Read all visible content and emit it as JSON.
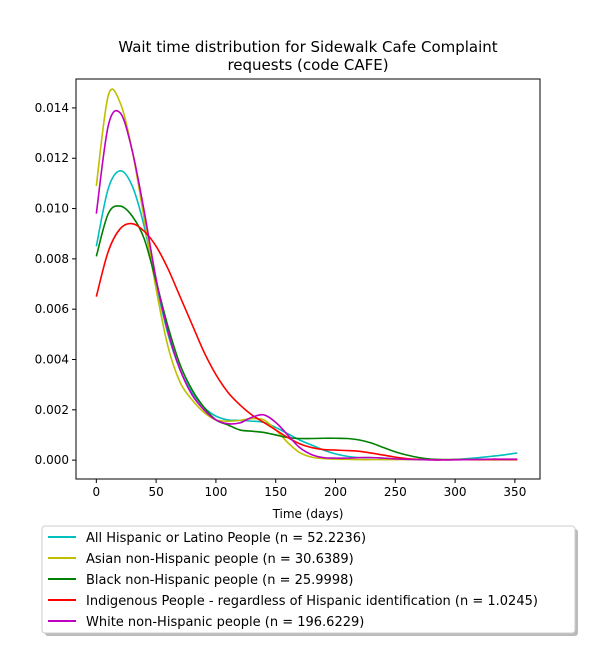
{
  "chart_data": {
    "type": "line",
    "title_lines": [
      "Wait time distribution  for Sidewalk Cafe Complaint",
      "requests (code CAFE)"
    ],
    "xlabel": "Time (days)",
    "ylabel": "",
    "xlim": [
      -17,
      371
    ],
    "ylim": [
      -0.00075,
      0.01515
    ],
    "xticks": [
      0,
      50,
      100,
      150,
      200,
      250,
      300,
      350
    ],
    "yticks": [
      0.0,
      0.002,
      0.004,
      0.006,
      0.008,
      0.01,
      0.012,
      0.014
    ],
    "ytick_labels": [
      "0.000",
      "0.002",
      "0.004",
      "0.006",
      "0.008",
      "0.010",
      "0.012",
      "0.014"
    ],
    "grid": false,
    "legend_position": "bottom, below axes",
    "x": [
      0,
      10,
      20,
      30,
      40,
      50,
      60,
      70,
      80,
      90,
      100,
      110,
      120,
      130,
      140,
      150,
      160,
      170,
      180,
      190,
      200,
      210,
      220,
      230,
      240,
      250,
      260,
      270,
      280,
      290,
      300,
      310,
      320,
      330,
      340,
      350,
      352
    ],
    "series": [
      {
        "name": "All Hispanic or Latino People (n = 52.2236)",
        "color": "#00bfbf",
        "values": [
          0.0085,
          0.0108,
          0.0115,
          0.0109,
          0.0093,
          0.007,
          0.005,
          0.0036,
          0.0027,
          0.0021,
          0.00175,
          0.0016,
          0.00158,
          0.00155,
          0.0015,
          0.0013,
          0.00105,
          0.0008,
          0.0006,
          0.0004,
          0.00025,
          0.00015,
          0.0001,
          0.0001,
          8e-05,
          5e-05,
          3e-05,
          2e-05,
          2e-05,
          2e-05,
          3e-05,
          6e-05,
          0.0001,
          0.00015,
          0.0002,
          0.00027,
          0.00028
        ]
      },
      {
        "name": "Asian non-Hispanic people (n = 30.6389)",
        "color": "#bfbf00",
        "values": [
          0.0109,
          0.0145,
          0.0142,
          0.0123,
          0.0096,
          0.0068,
          0.0045,
          0.0031,
          0.0024,
          0.0019,
          0.0016,
          0.00155,
          0.00158,
          0.00165,
          0.0016,
          0.0012,
          0.0007,
          0.0003,
          0.00012,
          6e-05,
          4e-05,
          3e-05,
          2e-05,
          2e-05,
          2e-05,
          2e-05,
          2e-05,
          2e-05,
          2e-05,
          2e-05,
          2e-05,
          2e-05,
          2e-05,
          2e-05,
          2e-05,
          2e-05,
          2e-05
        ]
      },
      {
        "name": "Black non-Hispanic people (n = 25.9998)",
        "color": "#008000",
        "values": [
          0.0081,
          0.0098,
          0.0101,
          0.0097,
          0.0088,
          0.0071,
          0.0053,
          0.0038,
          0.0028,
          0.0021,
          0.0016,
          0.0014,
          0.0012,
          0.00115,
          0.0011,
          0.001,
          0.0009,
          0.00086,
          0.00086,
          0.00087,
          0.00087,
          0.00086,
          0.0008,
          0.00068,
          0.0005,
          0.00033,
          0.0002,
          0.0001,
          4e-05,
          2e-05,
          2e-05,
          2e-05,
          2e-05,
          2e-05,
          2e-05,
          2e-05,
          2e-05
        ]
      },
      {
        "name": "Indigenous People - regardless of Hispanic identification (n = 1.0245)",
        "color": "#ff0000",
        "values": [
          0.0065,
          0.0083,
          0.0092,
          0.0094,
          0.0091,
          0.0085,
          0.0076,
          0.0065,
          0.0054,
          0.0043,
          0.0034,
          0.0027,
          0.0022,
          0.0018,
          0.0015,
          0.0012,
          0.0009,
          0.00065,
          0.0005,
          0.00042,
          0.0004,
          0.00038,
          0.00035,
          0.00028,
          0.0002,
          0.00012,
          6e-05,
          3e-05,
          1e-05,
          1e-05,
          2e-05,
          2e-05,
          2e-05,
          2e-05,
          2e-05,
          2e-05,
          2e-05
        ]
      },
      {
        "name": "White non-Hispanic people (n = 196.6229)",
        "color": "#bf00bf",
        "values": [
          0.0098,
          0.0133,
          0.0138,
          0.0123,
          0.0099,
          0.0072,
          0.0051,
          0.0036,
          0.0026,
          0.002,
          0.0016,
          0.00145,
          0.00148,
          0.0017,
          0.0018,
          0.0015,
          0.001,
          0.0005,
          0.00022,
          0.0001,
          8e-05,
          8e-05,
          0.0001,
          0.0001,
          8e-05,
          5e-05,
          3e-05,
          2e-05,
          1e-05,
          1e-05,
          1e-05,
          2e-05,
          3e-05,
          4e-05,
          4e-05,
          4e-05,
          4e-05
        ]
      }
    ]
  }
}
